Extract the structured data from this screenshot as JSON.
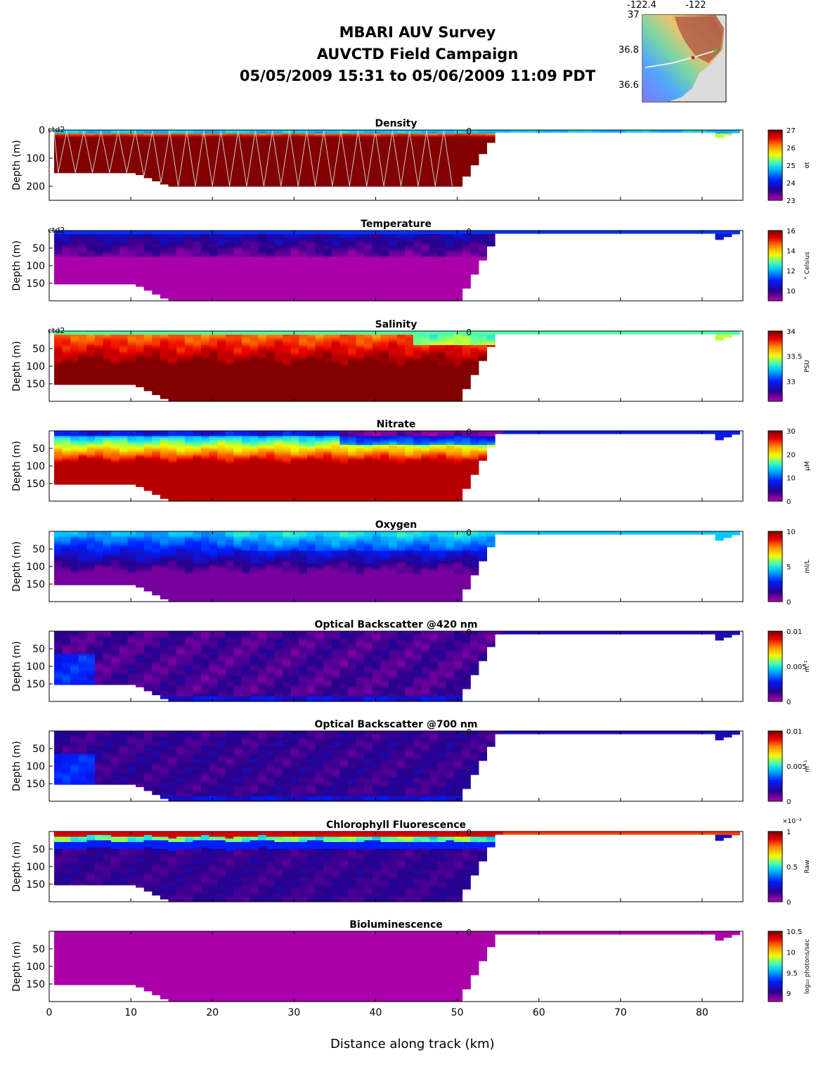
{
  "header": {
    "line1": "MBARI AUV Survey",
    "line2": "AUVCTD Field Campaign",
    "line3": "05/05/2009 15:31  to 05/06/2009 11:09 PDT"
  },
  "map": {
    "xticks": [
      "-122.4",
      "-122"
    ],
    "yticks": [
      "37",
      "36.8",
      "36.6"
    ]
  },
  "xlabel": "Distance along track (km)",
  "ylabel": "Depth (m)",
  "chart_data": {
    "type": "heatmap",
    "x": {
      "label": "Distance along track (km)",
      "range": [
        0,
        85
      ],
      "ticks": [
        0,
        10,
        20,
        30,
        40,
        50,
        60,
        70,
        80
      ]
    },
    "panels": [
      {
        "name": "Density",
        "unit": "σt",
        "clim": [
          23,
          27
        ],
        "cticks": [
          "23",
          "24",
          "25",
          "26",
          "27"
        ],
        "yticks": [
          "0",
          "100",
          "200"
        ],
        "ytickvals": [
          0,
          100,
          200
        ],
        "ylim": [
          0,
          250
        ],
        "annotation": "ctd2",
        "marker": "0"
      },
      {
        "name": "Temperature",
        "unit": "° Celsius",
        "clim": [
          9,
          16
        ],
        "cticks": [
          "10",
          "12",
          "14",
          "16"
        ],
        "yticks": [
          "50",
          "100",
          "150"
        ],
        "ytickvals": [
          50,
          100,
          150
        ],
        "ylim": [
          0,
          200
        ],
        "annotation": "ctd2",
        "marker": "0"
      },
      {
        "name": "Salinity",
        "unit": "PSU",
        "clim": [
          32.6,
          34
        ],
        "cticks": [
          "33",
          "33.5",
          "34"
        ],
        "yticks": [
          "50",
          "100",
          "150"
        ],
        "ytickvals": [
          50,
          100,
          150
        ],
        "ylim": [
          0,
          200
        ],
        "annotation": "ctd2",
        "marker": "0"
      },
      {
        "name": "Nitrate",
        "unit": "µM",
        "clim": [
          0,
          30
        ],
        "cticks": [
          "0",
          "10",
          "20",
          "30"
        ],
        "yticks": [
          "50",
          "100",
          "150"
        ],
        "ytickvals": [
          50,
          100,
          150
        ],
        "ylim": [
          0,
          200
        ],
        "annotation": "",
        "marker": "0"
      },
      {
        "name": "Oxygen",
        "unit": "ml/L",
        "clim": [
          0,
          10
        ],
        "cticks": [
          "0",
          "5",
          "10"
        ],
        "yticks": [
          "50",
          "100",
          "150"
        ],
        "ytickvals": [
          50,
          100,
          150
        ],
        "ylim": [
          0,
          200
        ],
        "annotation": "",
        "marker": "0"
      },
      {
        "name": "Optical Backscatter @420 nm",
        "unit": "m⁻¹",
        "clim": [
          0,
          0.01
        ],
        "cticks": [
          "0",
          "0.005",
          "0.01"
        ],
        "yticks": [
          "50",
          "100",
          "150"
        ],
        "ytickvals": [
          50,
          100,
          150
        ],
        "ylim": [
          0,
          200
        ],
        "annotation": "",
        "marker": "0"
      },
      {
        "name": "Optical Backscatter @700 nm",
        "unit": "m⁻¹",
        "clim": [
          0,
          0.01
        ],
        "cticks": [
          "0",
          "0.005",
          "0.01"
        ],
        "yticks": [
          "50",
          "100",
          "150"
        ],
        "ytickvals": [
          50,
          100,
          150
        ],
        "ylim": [
          0,
          200
        ],
        "annotation": "",
        "marker": "0"
      },
      {
        "name": "Chlorophyll Fluorescence",
        "unit": "Raw",
        "clim": [
          0,
          0.001
        ],
        "cticks": [
          "0",
          "0.5",
          "1"
        ],
        "exponent": "×10⁻³",
        "yticks": [
          "50",
          "100",
          "150"
        ],
        "ytickvals": [
          50,
          100,
          150
        ],
        "ylim": [
          0,
          200
        ],
        "annotation": "",
        "marker": "0"
      },
      {
        "name": "Bioluminescence",
        "unit": "log₁₀ photons/sec",
        "clim": [
          8.8,
          10.5
        ],
        "cticks": [
          "9",
          "9.5",
          "10",
          "10.5"
        ],
        "yticks": [
          "50",
          "100",
          "150"
        ],
        "ytickvals": [
          50,
          100,
          150
        ],
        "ylim": [
          0,
          200
        ],
        "annotation": "",
        "marker": "0"
      }
    ]
  }
}
